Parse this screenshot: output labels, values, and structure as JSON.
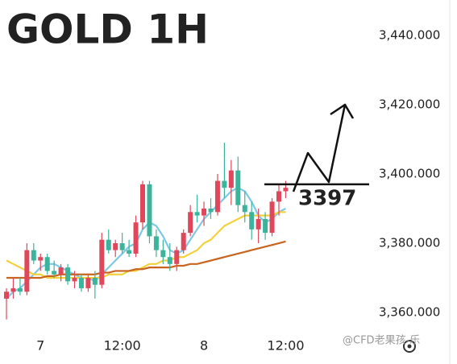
{
  "chart_data": {
    "type": "candlestick",
    "title": "GOLD 1H",
    "categories": [
      null,
      null,
      null,
      null,
      null,
      "7",
      null,
      null,
      null,
      null,
      null,
      null,
      null,
      null,
      null,
      null,
      null,
      "12:00",
      null,
      null,
      null,
      null,
      null,
      null,
      null,
      null,
      null,
      null,
      null,
      "8",
      null,
      null,
      null,
      null,
      null,
      null,
      null,
      null,
      null,
      null,
      null,
      "12:00"
    ],
    "open": [
      3364,
      3366,
      3367,
      3366,
      3378,
      3375,
      3376,
      3372,
      3371,
      3373,
      3369,
      3370,
      3367,
      3370,
      3368,
      3381,
      3378,
      3380,
      3378,
      3377,
      3386,
      3397,
      3382,
      3378,
      3376,
      3374,
      3378,
      3383,
      3389,
      3388,
      3390,
      3389,
      3398,
      3396,
      3401,
      3391,
      3389,
      3384,
      3387,
      3383,
      3392,
      3395
    ],
    "high": [
      3367,
      3370,
      3370,
      3380,
      3380,
      3377,
      3377,
      3375,
      3374,
      3374,
      3372,
      3371,
      3371,
      3372,
      3383,
      3384,
      3381,
      3383,
      3381,
      3388,
      3398,
      3398,
      3384,
      3381,
      3380,
      3379,
      3384,
      3391,
      3394,
      3392,
      3393,
      3400,
      3409,
      3404,
      3405,
      3395,
      3392,
      3390,
      3389,
      3393,
      3397,
      3398
    ],
    "low": [
      3358,
      3364,
      3365,
      3365,
      3374,
      3372,
      3371,
      3370,
      3369,
      3368,
      3367,
      3366,
      3366,
      3364,
      3367,
      3377,
      3376,
      3377,
      3376,
      3376,
      3384,
      3380,
      3376,
      3374,
      3372,
      3372,
      3377,
      3382,
      3386,
      3385,
      3387,
      3388,
      3393,
      3391,
      3389,
      3386,
      3381,
      3380,
      3381,
      3382,
      3388,
      3393
    ],
    "close": [
      3366,
      3367,
      3366,
      3378,
      3375,
      3376,
      3372,
      3371,
      3373,
      3369,
      3370,
      3367,
      3370,
      3368,
      3381,
      3378,
      3380,
      3378,
      3377,
      3386,
      3397,
      3382,
      3378,
      3376,
      3374,
      3378,
      3383,
      3389,
      3388,
      3390,
      3389,
      3398,
      3396,
      3401,
      3391,
      3389,
      3384,
      3387,
      3383,
      3392,
      3395,
      3396
    ],
    "up_color": "#e0475a",
    "down_color": "#3cb49b",
    "lines": [
      {
        "color": "#7ec8e3",
        "values": [
          3364,
          3366,
          3367,
          3369,
          3371,
          3373,
          3374,
          3374,
          3373,
          3372,
          3371,
          3370,
          3370,
          3369,
          3371,
          3373,
          3375,
          3377,
          3379,
          3380,
          3384,
          3386,
          3385,
          3382,
          3378,
          3377,
          3378,
          3381,
          3384,
          3387,
          3389,
          3391,
          3393,
          3395,
          3396,
          3395,
          3392,
          3388,
          3386,
          3387,
          3389,
          3390
        ]
      },
      {
        "color": "#f2d13a",
        "values": [
          3375,
          3374,
          3373,
          3372,
          3371,
          3371,
          3370,
          3370,
          3370,
          3370,
          3370,
          3370,
          3370,
          3370,
          3370,
          3371,
          3371,
          3371,
          3372,
          3372,
          3373,
          3374,
          3374,
          3375,
          3375,
          3376,
          3376,
          3377,
          3378,
          3380,
          3381,
          3383,
          3385,
          3386,
          3387,
          3388,
          3388,
          3388,
          3388,
          3388,
          3389,
          3389
        ]
      },
      {
        "color": "#c8641e",
        "values": [
          3370,
          3370,
          3370,
          3370,
          3370,
          3370,
          3370.5,
          3370.5,
          3371,
          3371,
          3371,
          3371,
          3371,
          3371,
          3371.5,
          3371.5,
          3372,
          3372,
          3372,
          3372.5,
          3372.5,
          3373,
          3373,
          3373,
          3373,
          3373.5,
          3373.5,
          3374,
          3374,
          3374.5,
          3375,
          3375.5,
          3376,
          3376.5,
          3377,
          3377.5,
          3378,
          3378.5,
          3379,
          3379.5,
          3380,
          3380.5
        ]
      }
    ],
    "ylim": [
      3354.9,
      3450.2
    ],
    "yticks": [
      {
        "value": 3360,
        "label": "3,360.000"
      },
      {
        "value": 3380,
        "label": "3,380.000"
      },
      {
        "value": 3400,
        "label": "3,400.000"
      },
      {
        "value": 3420,
        "label": "3,420.000"
      },
      {
        "value": 3440,
        "label": "3,440.000"
      }
    ],
    "hline": 3397,
    "watermark": "@CFD老果孩-乐"
  }
}
